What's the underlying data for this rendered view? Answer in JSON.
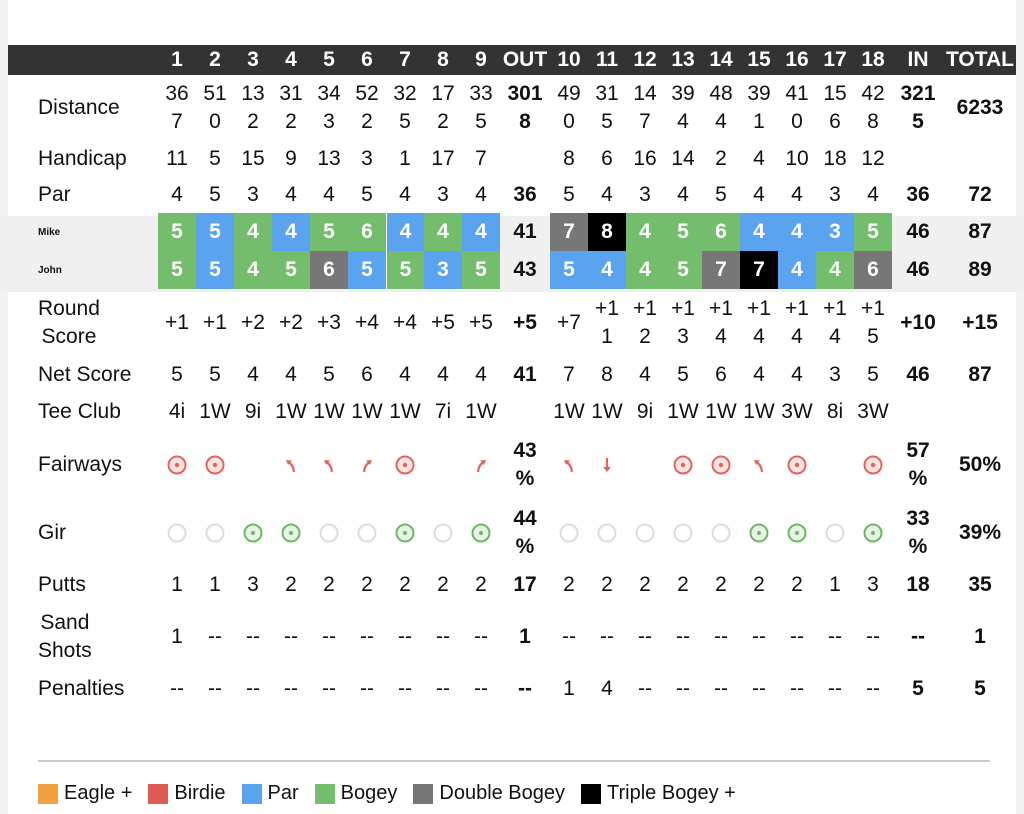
{
  "colors": {
    "eagle": "#f0a33c",
    "birdie": "#e05a55",
    "par": "#5aa3ee",
    "bogey": "#74bd6c",
    "double": "#777777",
    "triple": "#000000",
    "fairway": "#e06560",
    "gir_hit": "#6db765",
    "gir_miss": "#dddddd"
  },
  "header": [
    "1",
    "2",
    "3",
    "4",
    "5",
    "6",
    "7",
    "8",
    "9",
    "OUT",
    "10",
    "11",
    "12",
    "13",
    "14",
    "15",
    "16",
    "17",
    "18",
    "IN",
    "TOTAL"
  ],
  "rows": {
    "distance": {
      "label": "Distance",
      "cells": [
        "367",
        "510",
        "132",
        "312",
        "343",
        "522",
        "325",
        "172",
        "335",
        "3018",
        "490",
        "315",
        "147",
        "394",
        "484",
        "391",
        "410",
        "156",
        "428",
        "3215",
        "6233"
      ]
    },
    "handicap": {
      "label": "Handicap",
      "cells": [
        "11",
        "5",
        "15",
        "9",
        "13",
        "3",
        "1",
        "17",
        "7",
        "",
        "8",
        "6",
        "16",
        "14",
        "2",
        "4",
        "10",
        "18",
        "12",
        "",
        ""
      ]
    },
    "par": {
      "label": "Par",
      "cells": [
        "4",
        "5",
        "3",
        "4",
        "4",
        "5",
        "4",
        "3",
        "4",
        "36",
        "5",
        "4",
        "3",
        "4",
        "5",
        "4",
        "4",
        "3",
        "4",
        "36",
        "72"
      ]
    },
    "round_score": {
      "label": "Round Score",
      "cells": [
        "+1",
        "+1",
        "+2",
        "+2",
        "+3",
        "+4",
        "+4",
        "+5",
        "+5",
        "+5",
        "+7",
        "+11",
        "+12",
        "+13",
        "+14",
        "+14",
        "+14",
        "+14",
        "+15",
        "+10",
        "+15"
      ]
    },
    "net_score": {
      "label": "Net Score",
      "cells": [
        "5",
        "5",
        "4",
        "4",
        "5",
        "6",
        "4",
        "4",
        "4",
        "41",
        "7",
        "8",
        "4",
        "5",
        "6",
        "4",
        "4",
        "3",
        "5",
        "46",
        "87"
      ]
    },
    "tee_club": {
      "label": "Tee Club",
      "cells": [
        "4i",
        "1W",
        "9i",
        "1W",
        "1W",
        "1W",
        "1W",
        "7i",
        "1W",
        "",
        "1W",
        "1W",
        "9i",
        "1W",
        "1W",
        "1W",
        "3W",
        "8i",
        "3W",
        "",
        ""
      ]
    },
    "fairways": {
      "label": "Fairways",
      "holes": [
        "hit",
        "hit",
        "",
        "left",
        "left",
        "right",
        "hit",
        "",
        "right",
        "left",
        "short",
        "",
        "hit",
        "hit",
        "left",
        "hit",
        "",
        "hit"
      ],
      "out": "43%",
      "in": "57%",
      "total": "50%"
    },
    "gir": {
      "label": "Gir",
      "holes": [
        "miss",
        "miss",
        "hit",
        "hit",
        "miss",
        "miss",
        "hit",
        "miss",
        "hit",
        "miss",
        "miss",
        "miss",
        "miss",
        "miss",
        "hit",
        "hit",
        "miss",
        "hit"
      ],
      "out": "44%",
      "in": "33%",
      "total": "39%"
    },
    "putts": {
      "label": "Putts",
      "cells": [
        "1",
        "1",
        "3",
        "2",
        "2",
        "2",
        "2",
        "2",
        "2",
        "17",
        "2",
        "2",
        "2",
        "2",
        "2",
        "2",
        "2",
        "1",
        "3",
        "18",
        "35"
      ]
    },
    "sand_shots": {
      "label": "Sand Shots",
      "cells": [
        "1",
        "--",
        "--",
        "--",
        "--",
        "--",
        "--",
        "--",
        "--",
        "1",
        "--",
        "--",
        "--",
        "--",
        "--",
        "--",
        "--",
        "--",
        "--",
        "--",
        "1"
      ]
    },
    "penalties": {
      "label": "Penalties",
      "cells": [
        "--",
        "--",
        "--",
        "--",
        "--",
        "--",
        "--",
        "--",
        "--",
        "--",
        "1",
        "4",
        "--",
        "--",
        "--",
        "--",
        "--",
        "--",
        "--",
        "5",
        "5"
      ]
    }
  },
  "players": [
    {
      "name": "Mike",
      "cells": [
        "5",
        "5",
        "4",
        "4",
        "5",
        "6",
        "4",
        "4",
        "4",
        "41",
        "7",
        "8",
        "4",
        "5",
        "6",
        "4",
        "4",
        "3",
        "5",
        "46",
        "87"
      ],
      "results": [
        "bogey",
        "par",
        "bogey",
        "par",
        "bogey",
        "bogey",
        "par",
        "bogey",
        "par",
        "double",
        "triple",
        "bogey",
        "bogey",
        "bogey",
        "par",
        "par",
        "par",
        "bogey"
      ]
    },
    {
      "name": "John",
      "cells": [
        "5",
        "5",
        "4",
        "5",
        "6",
        "5",
        "5",
        "3",
        "5",
        "43",
        "5",
        "4",
        "4",
        "5",
        "7",
        "7",
        "4",
        "4",
        "6",
        "46",
        "89"
      ],
      "results": [
        "bogey",
        "par",
        "bogey",
        "bogey",
        "double",
        "par",
        "bogey",
        "par",
        "bogey",
        "par",
        "par",
        "bogey",
        "bogey",
        "double",
        "triple",
        "par",
        "bogey",
        "double"
      ]
    }
  ],
  "legend": [
    {
      "key": "eagle",
      "label": "Eagle +"
    },
    {
      "key": "birdie",
      "label": "Birdie"
    },
    {
      "key": "par",
      "label": "Par"
    },
    {
      "key": "bogey",
      "label": "Bogey"
    },
    {
      "key": "double",
      "label": "Double Bogey"
    },
    {
      "key": "triple",
      "label": "Triple Bogey +"
    }
  ]
}
